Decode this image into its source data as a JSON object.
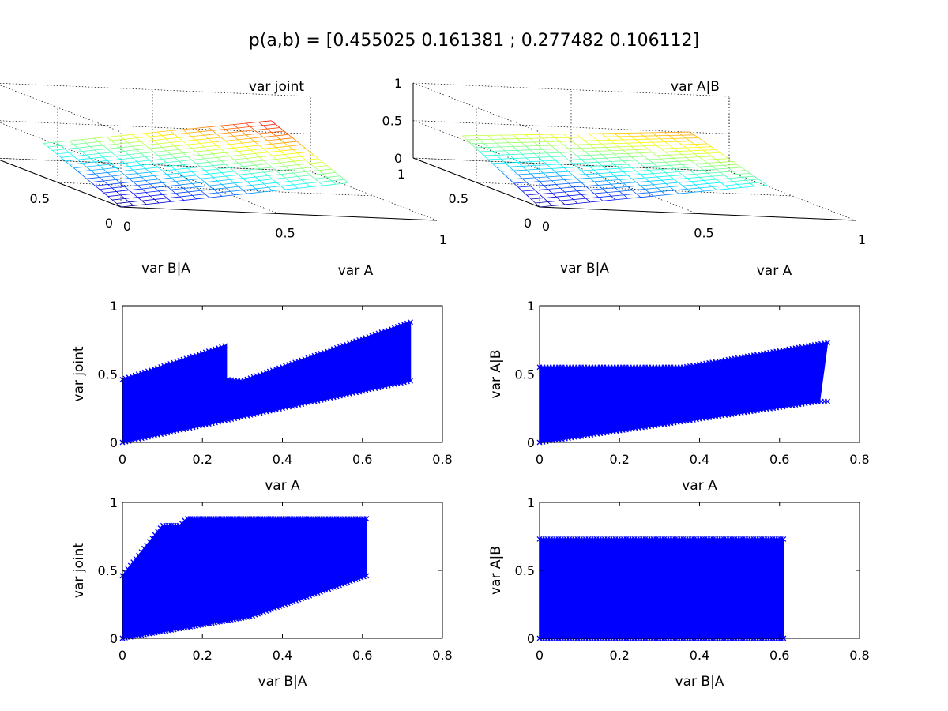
{
  "figure": {
    "suptitle": "p(a,b) = [0.455025 0.161381 ; 0.277482 0.106112]"
  },
  "chart_data": [
    {
      "id": "surf-joint",
      "type": "surface",
      "title": "var joint",
      "xlabel": "var A",
      "ylabel": "var B|A",
      "xlim": [
        0,
        1
      ],
      "ylim": [
        0,
        1
      ],
      "zlim": [
        0,
        1
      ],
      "xticks": [
        "0",
        "0.5",
        "1"
      ],
      "yticks": [
        "0",
        "0.5",
        "1"
      ],
      "zticks": [
        "0",
        "0.5",
        "1"
      ],
      "colormap": "jet",
      "grid": true,
      "surface_extent": {
        "var_A": [
          0,
          0.72
        ],
        "var_B|A": [
          0,
          0.61
        ]
      },
      "z_corners": {
        "A0_B0": 0.0,
        "Amax_B0": 0.45,
        "A0_Bmax": 0.45,
        "Amax_Bmax": 0.88
      }
    },
    {
      "id": "surf-cond",
      "type": "surface",
      "title": "var A|B",
      "xlabel": "var A",
      "ylabel": "var B|A",
      "xlim": [
        0,
        1
      ],
      "ylim": [
        0,
        1
      ],
      "zlim": [
        0,
        1
      ],
      "xticks": [
        "0",
        "0.5",
        "1"
      ],
      "yticks": [
        "0",
        "0.5",
        "1"
      ],
      "zticks": [
        "0",
        "0.5",
        "1"
      ],
      "colormap": "jet",
      "grid": true,
      "surface_extent": {
        "var_A": [
          0,
          0.72
        ],
        "var_B|A": [
          0,
          0.61
        ]
      },
      "z_corners": {
        "A0_B0": 0.0,
        "Amax_B0": 0.42,
        "A0_Bmax": 0.55,
        "Amax_Bmax": 0.73
      }
    },
    {
      "id": "scatter-joint-vs-A",
      "type": "scatter",
      "xlabel": "var A",
      "ylabel": "var joint",
      "xlim": [
        0,
        0.8
      ],
      "ylim": [
        0,
        1
      ],
      "xticks": [
        "0",
        "0.2",
        "0.4",
        "0.6",
        "0.8"
      ],
      "yticks": [
        "0",
        "0.5",
        "1"
      ],
      "color": "#0000ff",
      "region_upper": [
        [
          0,
          0.46
        ],
        [
          0.26,
          0.71
        ],
        [
          0.26,
          0.46
        ],
        [
          0.3,
          0.45
        ],
        [
          0.72,
          0.88
        ]
      ],
      "region_lower": [
        [
          0,
          0.0
        ],
        [
          0.72,
          0.45
        ]
      ]
    },
    {
      "id": "scatter-cond-vs-A",
      "type": "scatter",
      "xlabel": "var A",
      "ylabel": "var A|B",
      "xlim": [
        0,
        0.8
      ],
      "ylim": [
        0,
        1
      ],
      "xticks": [
        "0",
        "0.2",
        "0.4",
        "0.6",
        "0.8"
      ],
      "yticks": [
        "0",
        "0.5",
        "1"
      ],
      "color": "#0000ff",
      "region_upper": [
        [
          0,
          0.55
        ],
        [
          0.36,
          0.55
        ],
        [
          0.72,
          0.73
        ]
      ],
      "region_lower": [
        [
          0,
          0.0
        ],
        [
          0.7,
          0.3
        ]
      ]
    },
    {
      "id": "scatter-joint-vs-BA",
      "type": "scatter",
      "xlabel": "var B|A",
      "ylabel": "var joint",
      "xlim": [
        0,
        0.8
      ],
      "ylim": [
        0,
        1
      ],
      "xticks": [
        "0",
        "0.2",
        "0.4",
        "0.6",
        "0.8"
      ],
      "yticks": [
        "0",
        "0.5",
        "1"
      ],
      "color": "#0000ff",
      "region_upper": [
        [
          0,
          0.46
        ],
        [
          0.1,
          0.83
        ],
        [
          0.145,
          0.83
        ],
        [
          0.16,
          0.88
        ],
        [
          0.61,
          0.88
        ]
      ],
      "region_lower": [
        [
          0,
          0.0
        ],
        [
          0.32,
          0.16
        ],
        [
          0.61,
          0.46
        ]
      ]
    },
    {
      "id": "scatter-cond-vs-BA",
      "type": "scatter",
      "xlabel": "var B|A",
      "ylabel": "var A|B",
      "xlim": [
        0,
        0.8
      ],
      "ylim": [
        0,
        1
      ],
      "xticks": [
        "0",
        "0.2",
        "0.4",
        "0.6",
        "0.8"
      ],
      "yticks": [
        "0",
        "0.5",
        "1"
      ],
      "color": "#0000ff",
      "region_upper": [
        [
          0,
          0.73
        ],
        [
          0.61,
          0.73
        ]
      ],
      "region_lower": [
        [
          0,
          0.0
        ],
        [
          0.61,
          0.0
        ]
      ]
    }
  ]
}
